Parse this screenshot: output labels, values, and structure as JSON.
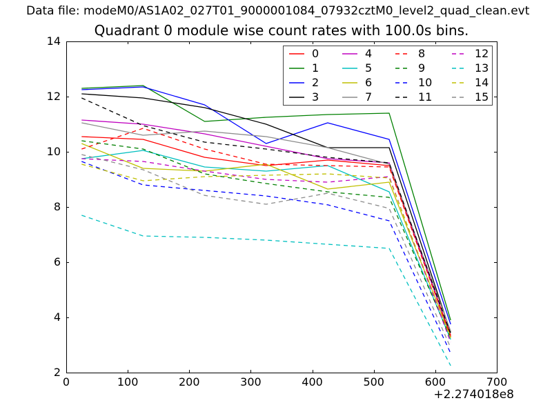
{
  "header": {
    "datafile": "Data file: modeM0/AS1A02_027T01_9000001084_07932cztM0_level2_quad_clean.evt"
  },
  "chart_data": {
    "type": "line",
    "title": "Quadrant 0 module wise count rates with 100.0s bins.",
    "xlabel": "",
    "ylabel": "",
    "x_offset_label": "+2.274018e8",
    "xlim": [
      0,
      700
    ],
    "ylim": [
      2,
      14
    ],
    "xticks": [
      0,
      100,
      200,
      300,
      400,
      500,
      600,
      700
    ],
    "yticks": [
      2,
      4,
      6,
      8,
      10,
      12,
      14
    ],
    "grid": false,
    "legend_position": "upper right",
    "legend_columns": 4,
    "bin_width_s": 100.0,
    "x": [
      25,
      125,
      225,
      325,
      425,
      525,
      625
    ],
    "series": [
      {
        "name": "0",
        "color": "#ff0000",
        "linestyle": "solid",
        "values": [
          10.55,
          10.45,
          9.8,
          9.5,
          9.7,
          9.5,
          3.35
        ]
      },
      {
        "name": "1",
        "color": "#008000",
        "linestyle": "solid",
        "values": [
          12.3,
          12.4,
          11.1,
          11.25,
          11.35,
          11.4,
          3.9
        ]
      },
      {
        "name": "2",
        "color": "#0000ff",
        "linestyle": "solid",
        "values": [
          12.25,
          12.35,
          11.7,
          10.3,
          11.05,
          10.45,
          3.75
        ]
      },
      {
        "name": "3",
        "color": "#000000",
        "linestyle": "solid",
        "values": [
          12.1,
          11.95,
          11.6,
          11.0,
          10.15,
          10.15,
          3.45
        ]
      },
      {
        "name": "4",
        "color": "#bf00bf",
        "linestyle": "solid",
        "values": [
          11.15,
          11.0,
          10.65,
          10.2,
          9.75,
          9.6,
          3.3
        ]
      },
      {
        "name": "5",
        "color": "#00bfbf",
        "linestyle": "solid",
        "values": [
          9.75,
          10.05,
          9.45,
          9.3,
          9.5,
          8.55,
          3.2
        ]
      },
      {
        "name": "6",
        "color": "#bfbf00",
        "linestyle": "solid",
        "values": [
          10.3,
          9.4,
          9.3,
          9.55,
          8.65,
          8.9,
          3.3
        ]
      },
      {
        "name": "7",
        "color": "#8c8c8c",
        "linestyle": "solid",
        "values": [
          11.05,
          10.6,
          10.75,
          10.55,
          10.15,
          9.55,
          3.5
        ]
      },
      {
        "name": "8",
        "color": "#ff0000",
        "linestyle": "dashed",
        "values": [
          10.1,
          10.85,
          10.1,
          9.55,
          9.5,
          9.45,
          3.3
        ]
      },
      {
        "name": "9",
        "color": "#008000",
        "linestyle": "dashed",
        "values": [
          10.4,
          10.1,
          9.2,
          8.85,
          8.55,
          8.35,
          3.25
        ]
      },
      {
        "name": "10",
        "color": "#0000ff",
        "linestyle": "dashed",
        "values": [
          9.65,
          8.8,
          8.6,
          8.4,
          8.08,
          7.5,
          2.7
        ]
      },
      {
        "name": "11",
        "color": "#000000",
        "linestyle": "dashed",
        "values": [
          11.95,
          10.95,
          10.35,
          10.1,
          9.8,
          9.6,
          3.4
        ]
      },
      {
        "name": "12",
        "color": "#bf00bf",
        "linestyle": "dashed",
        "values": [
          9.75,
          9.65,
          9.3,
          9.0,
          8.9,
          9.1,
          3.1
        ]
      },
      {
        "name": "13",
        "color": "#00bfbf",
        "linestyle": "dashed",
        "values": [
          7.7,
          6.95,
          6.9,
          6.8,
          6.65,
          6.5,
          2.25
        ]
      },
      {
        "name": "14",
        "color": "#bfbf00",
        "linestyle": "dashed",
        "values": [
          9.55,
          8.95,
          9.1,
          9.15,
          9.2,
          9.05,
          3.25
        ]
      },
      {
        "name": "15",
        "color": "#8c8c8c",
        "linestyle": "dashed",
        "values": [
          9.9,
          9.35,
          8.42,
          8.1,
          8.5,
          7.95,
          2.9
        ]
      }
    ]
  }
}
